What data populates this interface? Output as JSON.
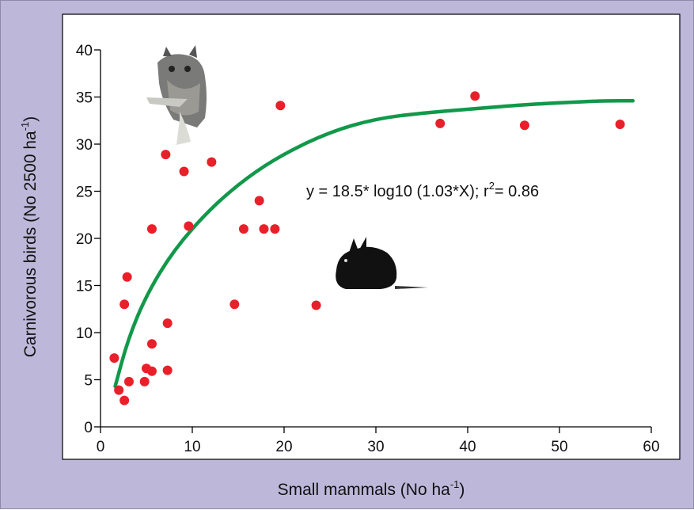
{
  "chart_data": {
    "type": "scatter",
    "title": "",
    "xlabel": "Small mammals (No ha",
    "xlabel_sup": "-1",
    "xlabel_tail": ")",
    "ylabel": "Carnivorous birds (No 2500 ha",
    "ylabel_sup": "-1",
    "ylabel_tail": ")",
    "xlim": [
      0,
      60
    ],
    "ylim": [
      0,
      40
    ],
    "xticks": [
      0,
      10,
      20,
      30,
      40,
      50,
      60
    ],
    "yticks": [
      0,
      5,
      10,
      15,
      20,
      25,
      30,
      35,
      40
    ],
    "grid": false,
    "point_color": "#e8202a",
    "fit_color": "#12984a",
    "points": [
      {
        "x": 1.5,
        "y": 7.3
      },
      {
        "x": 2.0,
        "y": 3.9
      },
      {
        "x": 2.6,
        "y": 2.8
      },
      {
        "x": 2.6,
        "y": 13.0
      },
      {
        "x": 2.9,
        "y": 15.9
      },
      {
        "x": 3.1,
        "y": 4.8
      },
      {
        "x": 4.8,
        "y": 4.8
      },
      {
        "x": 5.0,
        "y": 6.2
      },
      {
        "x": 5.6,
        "y": 5.9
      },
      {
        "x": 5.6,
        "y": 8.8
      },
      {
        "x": 5.6,
        "y": 21.0
      },
      {
        "x": 7.1,
        "y": 28.9
      },
      {
        "x": 7.3,
        "y": 6.0
      },
      {
        "x": 7.3,
        "y": 11.0
      },
      {
        "x": 9.1,
        "y": 27.1
      },
      {
        "x": 9.6,
        "y": 21.3
      },
      {
        "x": 12.1,
        "y": 28.1
      },
      {
        "x": 14.6,
        "y": 13.0
      },
      {
        "x": 15.6,
        "y": 21.0
      },
      {
        "x": 17.3,
        "y": 24.0
      },
      {
        "x": 17.8,
        "y": 21.0
      },
      {
        "x": 19.0,
        "y": 21.0
      },
      {
        "x": 19.6,
        "y": 34.1
      },
      {
        "x": 23.5,
        "y": 12.9
      },
      {
        "x": 37.0,
        "y": 32.2
      },
      {
        "x": 40.8,
        "y": 35.1
      },
      {
        "x": 46.2,
        "y": 32.0
      },
      {
        "x": 56.6,
        "y": 32.1
      }
    ],
    "fit": {
      "x": [
        1.6,
        3,
        5,
        8,
        12,
        16,
        20,
        25,
        30,
        35,
        40,
        45,
        50,
        55,
        58
      ],
      "y": [
        4.3,
        9.3,
        14.0,
        18.8,
        23.2,
        26.5,
        29.0,
        31.3,
        32.7,
        33.3,
        33.7,
        34.1,
        34.4,
        34.6,
        34.6
      ]
    },
    "annotation": {
      "prefix": "y = 18.5* log10 (1.03*X); r",
      "sup": "2",
      "suffix": "= 0.86"
    },
    "illustrations": [
      "owl-illustration",
      "rabbit-illustration"
    ]
  }
}
